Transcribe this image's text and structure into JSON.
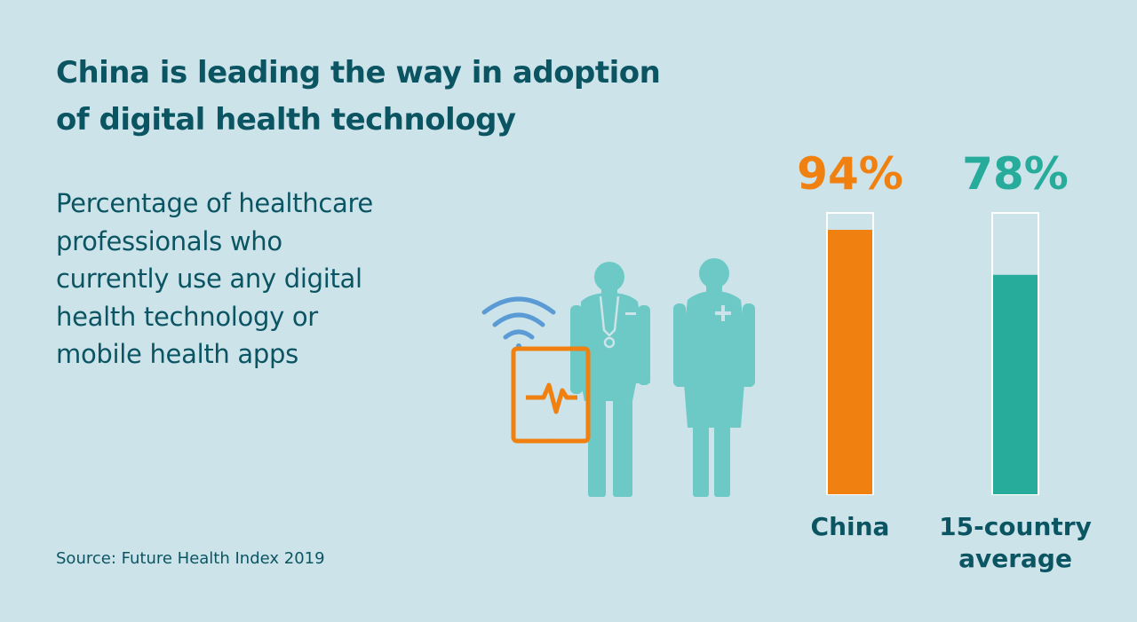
{
  "header": {
    "title_line1": "China is leading the way in adoption",
    "title_line2": "of digital health technology"
  },
  "description": {
    "lines": [
      "Percentage of healthcare",
      "professionals who",
      "currently use any digital",
      "health technology or",
      "mobile health apps"
    ]
  },
  "source": "Source: Future Health Index 2019",
  "colors": {
    "background": "#cce3ea",
    "text": "#0b5563",
    "china": "#f0800f",
    "average": "#27ab9b",
    "figure": "#6cc9c5",
    "wifi": "#5b9bd5",
    "tablet": "#f0800f"
  },
  "illustration": {
    "icons": [
      "wifi-icon",
      "tablet-heartbeat-icon",
      "doctor-icon",
      "nurse-icon"
    ]
  },
  "chart_data": {
    "type": "bar",
    "categories": [
      "China",
      "15-country average"
    ],
    "category_lines": [
      [
        "China"
      ],
      [
        "15-country",
        "average"
      ]
    ],
    "values": [
      94,
      78
    ],
    "value_labels": [
      "94%",
      "78%"
    ],
    "colors": [
      "#f0800f",
      "#27ab9b"
    ],
    "ylim": [
      0,
      100
    ],
    "title": "",
    "xlabel": "",
    "ylabel": "",
    "grid": false
  }
}
